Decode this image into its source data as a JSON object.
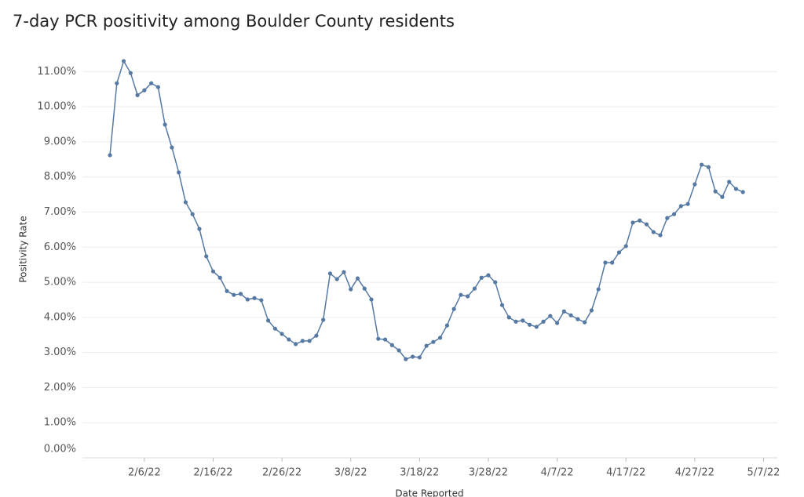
{
  "chart_data": {
    "type": "line",
    "title": "7-day PCR positivity among Boulder County residents",
    "x_label": "Date Reported",
    "y_label": "Positivity Rate",
    "x": [
      "2/1/22",
      "2/2/22",
      "2/3/22",
      "2/4/22",
      "2/5/22",
      "2/6/22",
      "2/7/22",
      "2/8/22",
      "2/9/22",
      "2/10/22",
      "2/11/22",
      "2/12/22",
      "2/13/22",
      "2/14/22",
      "2/15/22",
      "2/16/22",
      "2/17/22",
      "2/18/22",
      "2/19/22",
      "2/20/22",
      "2/21/22",
      "2/22/22",
      "2/23/22",
      "2/24/22",
      "2/25/22",
      "2/26/22",
      "2/27/22",
      "2/28/22",
      "3/1/22",
      "3/2/22",
      "3/3/22",
      "3/4/22",
      "3/5/22",
      "3/6/22",
      "3/7/22",
      "3/8/22",
      "3/9/22",
      "3/10/22",
      "3/11/22",
      "3/12/22",
      "3/13/22",
      "3/14/22",
      "3/15/22",
      "3/16/22",
      "3/17/22",
      "3/18/22",
      "3/19/22",
      "3/20/22",
      "3/21/22",
      "3/22/22",
      "3/23/22",
      "3/24/22",
      "3/25/22",
      "3/26/22",
      "3/27/22",
      "3/28/22",
      "3/29/22",
      "3/30/22",
      "3/31/22",
      "4/1/22",
      "4/2/22",
      "4/3/22",
      "4/4/22",
      "4/5/22",
      "4/6/22",
      "4/7/22",
      "4/8/22",
      "4/9/22",
      "4/10/22",
      "4/11/22",
      "4/12/22",
      "4/13/22",
      "4/14/22",
      "4/15/22",
      "4/16/22",
      "4/17/22",
      "4/18/22",
      "4/19/22",
      "4/20/22",
      "4/21/22",
      "4/22/22",
      "4/23/22",
      "4/24/22",
      "4/25/22",
      "4/26/22",
      "4/27/22",
      "4/28/22",
      "4/29/22",
      "4/30/22",
      "5/1/22",
      "5/2/22",
      "5/3/22",
      "5/4/22"
    ],
    "series": [
      {
        "name": "Positivity Rate",
        "color": "#5579a3",
        "values": [
          8.62,
          10.67,
          11.3,
          10.96,
          10.33,
          10.47,
          10.67,
          10.56,
          9.49,
          8.84,
          8.13,
          7.28,
          6.94,
          6.52,
          5.74,
          5.31,
          5.13,
          4.75,
          4.64,
          4.67,
          4.51,
          4.55,
          4.49,
          3.91,
          3.68,
          3.53,
          3.37,
          3.24,
          3.33,
          3.33,
          3.48,
          3.93,
          5.25,
          5.09,
          5.29,
          4.8,
          5.11,
          4.82,
          4.51,
          3.39,
          3.37,
          3.21,
          3.06,
          2.81,
          2.88,
          2.86,
          3.19,
          3.3,
          3.42,
          3.77,
          4.24,
          4.64,
          4.6,
          4.82,
          5.13,
          5.2,
          5.0,
          4.35,
          4.0,
          3.88,
          3.91,
          3.79,
          3.73,
          3.88,
          4.04,
          3.84,
          4.17,
          4.06,
          3.95,
          3.86,
          4.2,
          4.8,
          5.56,
          5.56,
          5.85,
          6.03,
          6.7,
          6.76,
          6.65,
          6.43,
          6.34,
          6.83,
          6.94,
          7.17,
          7.23,
          7.79,
          8.35,
          8.28,
          7.59,
          7.43,
          7.86,
          7.66,
          7.57
        ]
      }
    ],
    "xlim": [
      "1/28/22",
      "5/9/22"
    ],
    "xticks": [
      "2/6/22",
      "2/16/22",
      "2/26/22",
      "3/8/22",
      "3/18/22",
      "3/28/22",
      "4/7/22",
      "4/17/22",
      "4/27/22",
      "5/7/22"
    ],
    "ylim": [
      0,
      11.5
    ],
    "yticks": [
      {
        "value": 0,
        "label": "0.00%"
      },
      {
        "value": 1,
        "label": "1.00%"
      },
      {
        "value": 2,
        "label": "2.00%"
      },
      {
        "value": 3,
        "label": "3.00%"
      },
      {
        "value": 4,
        "label": "4.00%"
      },
      {
        "value": 5,
        "label": "5.00%"
      },
      {
        "value": 6,
        "label": "6.00%"
      },
      {
        "value": 7,
        "label": "7.00%"
      },
      {
        "value": 8,
        "label": "8.00%"
      },
      {
        "value": 9,
        "label": "9.00%"
      },
      {
        "value": 10,
        "label": "10.00%"
      },
      {
        "value": 11,
        "label": "11.00%"
      }
    ],
    "grid": true
  }
}
